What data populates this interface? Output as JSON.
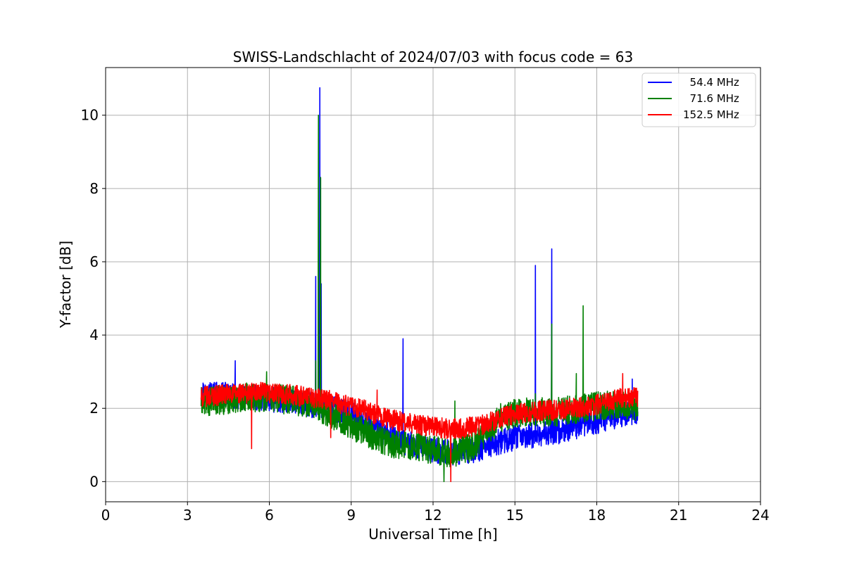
{
  "chart_data": {
    "type": "line",
    "title": "SWISS-Landschlacht of 2024/07/03 with focus code = 63",
    "xlabel": "Universal Time [h]",
    "ylabel": "Y-factor [dB]",
    "xlim": [
      0,
      24
    ],
    "ylim": [
      -0.55,
      11.3
    ],
    "xticks": [
      0,
      3,
      6,
      9,
      12,
      15,
      18,
      21,
      24
    ],
    "yticks": [
      0,
      2,
      4,
      6,
      8,
      10
    ],
    "grid": true,
    "legend_position": "top-right",
    "series": [
      {
        "name": "  54.4 MHz",
        "color": "#0000ff",
        "base": [
          [
            3.5,
            2.45
          ],
          [
            4.0,
            2.4
          ],
          [
            4.5,
            2.35
          ],
          [
            5.0,
            2.3
          ],
          [
            5.5,
            2.3
          ],
          [
            6.0,
            2.25
          ],
          [
            6.5,
            2.2
          ],
          [
            7.0,
            2.15
          ],
          [
            7.5,
            2.1
          ],
          [
            8.0,
            2.05
          ],
          [
            8.5,
            1.95
          ],
          [
            9.0,
            1.85
          ],
          [
            9.5,
            1.6
          ],
          [
            10.0,
            1.4
          ],
          [
            10.5,
            1.2
          ],
          [
            11.0,
            1.05
          ],
          [
            11.5,
            0.95
          ],
          [
            12.0,
            0.85
          ],
          [
            12.5,
            0.8
          ],
          [
            13.0,
            0.8
          ],
          [
            13.5,
            0.85
          ],
          [
            14.0,
            1.0
          ],
          [
            14.5,
            1.1
          ],
          [
            15.0,
            1.2
          ],
          [
            15.5,
            1.25
          ],
          [
            16.0,
            1.3
          ],
          [
            16.5,
            1.35
          ],
          [
            17.0,
            1.45
          ],
          [
            17.5,
            1.55
          ],
          [
            18.0,
            1.65
          ],
          [
            18.5,
            1.75
          ],
          [
            19.0,
            1.85
          ],
          [
            19.5,
            1.9
          ]
        ],
        "noise": 0.35,
        "spikes": [
          [
            4.75,
            3.3
          ],
          [
            7.7,
            5.6
          ],
          [
            7.85,
            10.75
          ],
          [
            7.9,
            5.4
          ],
          [
            10.9,
            3.9
          ],
          [
            15.75,
            5.9
          ],
          [
            16.35,
            6.35
          ],
          [
            19.3,
            2.8
          ]
        ]
      },
      {
        "name": "  71.6 MHz",
        "color": "#008000",
        "base": [
          [
            3.5,
            2.2
          ],
          [
            4.0,
            2.2
          ],
          [
            4.5,
            2.25
          ],
          [
            5.0,
            2.3
          ],
          [
            5.5,
            2.3
          ],
          [
            6.0,
            2.3
          ],
          [
            6.5,
            2.25
          ],
          [
            7.0,
            2.2
          ],
          [
            7.5,
            2.15
          ],
          [
            8.0,
            1.95
          ],
          [
            8.5,
            1.75
          ],
          [
            9.0,
            1.55
          ],
          [
            9.5,
            1.35
          ],
          [
            10.0,
            1.2
          ],
          [
            10.5,
            1.05
          ],
          [
            11.0,
            1.0
          ],
          [
            11.5,
            0.95
          ],
          [
            12.0,
            0.85
          ],
          [
            12.5,
            0.8
          ],
          [
            13.0,
            0.8
          ],
          [
            13.5,
            1.0
          ],
          [
            14.0,
            1.4
          ],
          [
            14.5,
            1.75
          ],
          [
            15.0,
            1.85
          ],
          [
            15.5,
            1.9
          ],
          [
            16.0,
            1.9
          ],
          [
            16.5,
            1.9
          ],
          [
            17.0,
            1.95
          ],
          [
            17.5,
            2.0
          ],
          [
            18.0,
            2.05
          ],
          [
            18.5,
            2.1
          ],
          [
            19.0,
            2.1
          ],
          [
            19.5,
            2.05
          ]
        ],
        "noise": 0.4,
        "spikes": [
          [
            5.9,
            3.0
          ],
          [
            7.7,
            3.3
          ],
          [
            7.8,
            10.0
          ],
          [
            7.88,
            8.3
          ],
          [
            12.4,
            0.0
          ],
          [
            12.8,
            2.2
          ],
          [
            15.75,
            2.4
          ],
          [
            16.35,
            4.3
          ],
          [
            17.25,
            2.95
          ],
          [
            17.5,
            4.8
          ]
        ]
      },
      {
        "name": "152.5 MHz",
        "color": "#ff0000",
        "base": [
          [
            3.5,
            2.3
          ],
          [
            4.0,
            2.35
          ],
          [
            4.5,
            2.4
          ],
          [
            5.0,
            2.4
          ],
          [
            5.5,
            2.45
          ],
          [
            6.0,
            2.4
          ],
          [
            6.5,
            2.4
          ],
          [
            7.0,
            2.35
          ],
          [
            7.5,
            2.3
          ],
          [
            8.0,
            2.25
          ],
          [
            8.5,
            2.15
          ],
          [
            9.0,
            2.05
          ],
          [
            9.5,
            1.95
          ],
          [
            10.0,
            1.8
          ],
          [
            10.5,
            1.7
          ],
          [
            11.0,
            1.6
          ],
          [
            11.5,
            1.55
          ],
          [
            12.0,
            1.5
          ],
          [
            12.5,
            1.45
          ],
          [
            13.0,
            1.45
          ],
          [
            13.5,
            1.5
          ],
          [
            14.0,
            1.6
          ],
          [
            14.5,
            1.75
          ],
          [
            15.0,
            1.85
          ],
          [
            15.5,
            1.9
          ],
          [
            16.0,
            1.95
          ],
          [
            16.5,
            1.95
          ],
          [
            17.0,
            2.0
          ],
          [
            17.5,
            2.05
          ],
          [
            18.0,
            2.1
          ],
          [
            18.5,
            2.2
          ],
          [
            19.0,
            2.3
          ],
          [
            19.5,
            2.3
          ]
        ],
        "noise": 0.28,
        "spikes": [
          [
            5.35,
            0.9
          ],
          [
            8.25,
            1.2
          ],
          [
            9.95,
            2.5
          ],
          [
            12.65,
            0.0
          ],
          [
            18.95,
            2.95
          ]
        ]
      }
    ]
  }
}
